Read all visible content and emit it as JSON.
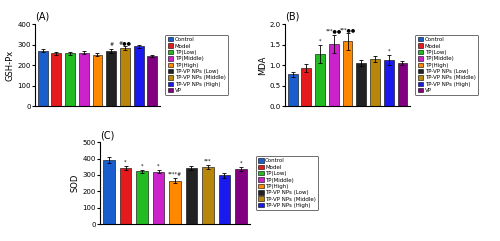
{
  "chart_data": [
    {
      "type": "bar",
      "title": "(A)",
      "y_label": "GSH-Px",
      "categories": [
        "Control",
        "Model",
        "TP(Low)",
        "TP(Middle)",
        "TP(High)",
        "TP-VP NPs (Low)",
        "TP-VP NPs (Middle)",
        "TP-VP NPs (High)",
        "VP"
      ],
      "values": [
        270,
        258,
        258,
        260,
        250,
        270,
        283,
        292,
        245
      ],
      "errors": [
        8,
        8,
        7,
        7,
        7,
        9,
        9,
        8,
        6
      ],
      "colors": [
        "#1a5dcc",
        "#e41a1c",
        "#22bb22",
        "#cc22cc",
        "#ff8800",
        "#222222",
        "#b8860b",
        "#1a1aee",
        "#800080"
      ],
      "ylim": [
        0,
        400
      ],
      "yticks": [
        0,
        100,
        200,
        300,
        400
      ],
      "annotations": [
        {
          "index": 5,
          "text": "#"
        },
        {
          "index": 6,
          "text": "#●●"
        }
      ],
      "legend": "right",
      "tick_labels": "y"
    },
    {
      "type": "bar",
      "title": "(B)",
      "y_label": "MDA",
      "categories": [
        "Control",
        "Model",
        "TP(Low)",
        "TP(Middle)",
        "TP(High)",
        "TP-VP NPs (Low)",
        "TP-VP NPs (Middle)",
        "TP-VP NPs (High)",
        "VP"
      ],
      "values": [
        0.78,
        0.93,
        1.28,
        1.52,
        1.58,
        1.05,
        1.15,
        1.12,
        1.05
      ],
      "errors": [
        0.06,
        0.1,
        0.22,
        0.22,
        0.2,
        0.07,
        0.08,
        0.12,
        0.06
      ],
      "colors": [
        "#1a5dcc",
        "#e41a1c",
        "#22bb22",
        "#cc22cc",
        "#ff8800",
        "#222222",
        "#b8860b",
        "#1a1aee",
        "#800080"
      ],
      "ylim": [
        0.0,
        2.0
      ],
      "yticks": [
        0.0,
        0.5,
        1.0,
        1.5,
        2.0
      ],
      "annotations": [
        {
          "index": 2,
          "text": "*"
        },
        {
          "index": 3,
          "text": "***●●"
        },
        {
          "index": 4,
          "text": "***●●"
        },
        {
          "index": 7,
          "text": "*"
        }
      ],
      "legend": "right",
      "tick_labels": "y"
    },
    {
      "type": "bar",
      "title": "(C)",
      "y_label": "SOD",
      "categories": [
        "Control",
        "Model",
        "TP(Low)",
        "TP(Middle)",
        "TP(High)",
        "TP-VP NPs (Low)",
        "TP-VP NPs (Middle)",
        "TP-VP NPs (High)",
        null
      ],
      "values": [
        392,
        343,
        323,
        320,
        265,
        342,
        350,
        297,
        335
      ],
      "errors": [
        18,
        12,
        10,
        10,
        15,
        10,
        12,
        18,
        12
      ],
      "colors": [
        "#1a5dcc",
        "#e41a1c",
        "#22bb22",
        "#cc22cc",
        "#ff8800",
        "#222222",
        "#b8860b",
        "#1a1aee",
        "#800080"
      ],
      "ylim": [
        0,
        500
      ],
      "yticks": [
        0,
        100,
        200,
        300,
        400,
        500
      ],
      "annotations": [
        {
          "index": 1,
          "text": "*"
        },
        {
          "index": 2,
          "text": "*"
        },
        {
          "index": 3,
          "text": "*"
        },
        {
          "index": 4,
          "text": "****#"
        },
        {
          "index": 6,
          "text": "***"
        },
        {
          "index": 8,
          "text": "*"
        }
      ],
      "legend": "right",
      "tick_labels": "y"
    }
  ]
}
